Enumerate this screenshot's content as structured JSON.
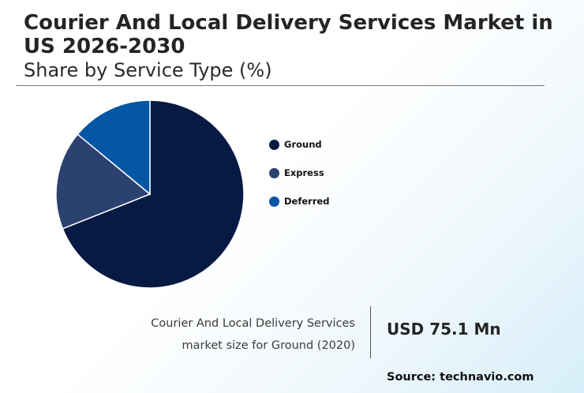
{
  "header": {
    "title": "Courier And Local Delivery Services Market in US 2026-2030",
    "subtitle": "Share by Service Type (%)"
  },
  "chart_data": {
    "type": "pie",
    "title": "Share by Service Type (%)",
    "categories": [
      "Ground",
      "Express",
      "Deferred"
    ],
    "values": [
      69,
      17,
      14
    ],
    "colors": [
      "#061a43",
      "#2b4170",
      "#0656a6"
    ],
    "legend_position": "right",
    "start": "top-clockwise"
  },
  "stat": {
    "description": "Courier And Local Delivery Services market size for Ground (2020)",
    "value": "USD 75.1 Mn"
  },
  "source": "Source: technavio.com"
}
